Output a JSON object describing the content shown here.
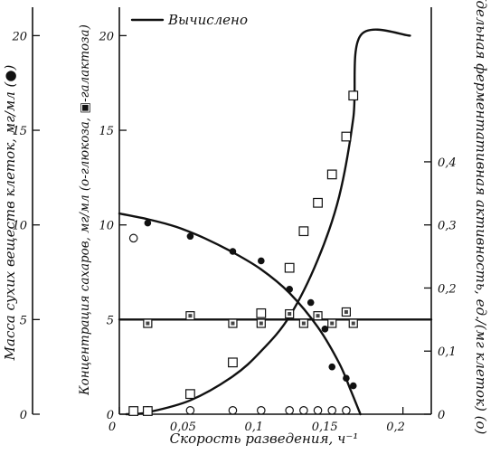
{
  "chart_data": {
    "type": "scatter",
    "legend": {
      "label": "Вычислено",
      "position": "top-left"
    },
    "axes": {
      "x": {
        "label": "Скорость разведения, ч⁻¹",
        "range": [
          0,
          0.22
        ],
        "ticks": [
          {
            "v": 0,
            "t": "0"
          },
          {
            "v": 0.05,
            "t": "0,05"
          },
          {
            "v": 0.1,
            "t": "0,1"
          },
          {
            "v": 0.15,
            "t": "0,15"
          },
          {
            "v": 0.2,
            "t": "0,2"
          }
        ]
      },
      "y_left_outer": {
        "label": "Масса сухих веществ клеток, мг/мл (●)",
        "range": [
          0,
          21.5
        ],
        "ticks": [
          {
            "v": 0,
            "t": "0"
          },
          {
            "v": 5,
            "t": "5"
          },
          {
            "v": 10,
            "t": "10"
          },
          {
            "v": 15,
            "t": "15"
          },
          {
            "v": 20,
            "t": "20"
          }
        ]
      },
      "y_left_inner": {
        "label": "Концентрация сахаров, мг/мл (о-глюкоза, ▣-галактоза)",
        "range": [
          0,
          21.5
        ],
        "ticks": [
          {
            "v": 0,
            "t": "0"
          },
          {
            "v": 5,
            "t": "5"
          },
          {
            "v": 10,
            "t": "10"
          },
          {
            "v": 15,
            "t": "15"
          },
          {
            "v": 20,
            "t": "20"
          }
        ]
      },
      "y_right": {
        "label": "Удельная ферментативная активность, ед./(мг клеток) (о)",
        "range": [
          0,
          0.645
        ],
        "ticks": [
          {
            "v": 0,
            "t": "0"
          },
          {
            "v": 0.1,
            "t": "0,1"
          },
          {
            "v": 0.2,
            "t": "0,2"
          },
          {
            "v": 0.3,
            "t": "0,3"
          },
          {
            "v": 0.4,
            "t": "0,4"
          }
        ]
      }
    },
    "series": [
      {
        "key": "dry_mass",
        "marker": "filled-circle",
        "axis": "left",
        "points": [
          [
            0.02,
            10.1
          ],
          [
            0.05,
            9.4
          ],
          [
            0.08,
            8.6
          ],
          [
            0.1,
            8.1
          ],
          [
            0.12,
            6.6
          ],
          [
            0.135,
            5.9
          ],
          [
            0.145,
            4.5
          ],
          [
            0.15,
            2.5
          ],
          [
            0.16,
            1.9
          ],
          [
            0.165,
            1.5
          ]
        ]
      },
      {
        "key": "glucose",
        "marker": "open-circle",
        "axis": "left",
        "points": [
          [
            0.01,
            9.3
          ],
          [
            0.02,
            0.2
          ],
          [
            0.05,
            0.2
          ],
          [
            0.08,
            0.2
          ],
          [
            0.1,
            0.2
          ],
          [
            0.12,
            0.2
          ],
          [
            0.13,
            0.2
          ],
          [
            0.14,
            0.2
          ],
          [
            0.15,
            0.2
          ],
          [
            0.16,
            0.2
          ]
        ]
      },
      {
        "key": "galactose",
        "marker": "dotted-square",
        "axis": "left",
        "points": [
          [
            0.02,
            4.8
          ],
          [
            0.05,
            5.2
          ],
          [
            0.08,
            4.8
          ],
          [
            0.1,
            4.8
          ],
          [
            0.12,
            5.3
          ],
          [
            0.13,
            4.8
          ],
          [
            0.14,
            5.2
          ],
          [
            0.15,
            4.8
          ],
          [
            0.16,
            5.4
          ],
          [
            0.165,
            4.8
          ]
        ]
      },
      {
        "key": "activity",
        "marker": "open-square",
        "axis": "right",
        "points": [
          [
            0.01,
            0.005
          ],
          [
            0.02,
            0.005
          ],
          [
            0.05,
            0.032
          ],
          [
            0.08,
            0.082
          ],
          [
            0.1,
            0.16
          ],
          [
            0.12,
            0.232
          ],
          [
            0.13,
            0.29
          ],
          [
            0.14,
            0.335
          ],
          [
            0.15,
            0.38
          ],
          [
            0.16,
            0.44
          ],
          [
            0.165,
            0.505
          ]
        ]
      }
    ],
    "curves": [
      {
        "key": "dry_mass_calc",
        "axis": "left",
        "points": [
          [
            0,
            10.6
          ],
          [
            0.02,
            10.3
          ],
          [
            0.04,
            9.9
          ],
          [
            0.06,
            9.3
          ],
          [
            0.08,
            8.55
          ],
          [
            0.1,
            7.65
          ],
          [
            0.12,
            6.4
          ],
          [
            0.14,
            4.6
          ],
          [
            0.155,
            2.7
          ],
          [
            0.163,
            1.3
          ],
          [
            0.17,
            0
          ]
        ]
      },
      {
        "key": "galactose_calc",
        "axis": "left",
        "points": [
          [
            0,
            5.0
          ],
          [
            0.22,
            5.0
          ]
        ]
      },
      {
        "key": "activity_calc",
        "axis": "right",
        "points": [
          [
            0.005,
            0
          ],
          [
            0.02,
            0.003
          ],
          [
            0.05,
            0.022
          ],
          [
            0.08,
            0.06
          ],
          [
            0.1,
            0.1
          ],
          [
            0.12,
            0.155
          ],
          [
            0.14,
            0.245
          ],
          [
            0.155,
            0.345
          ],
          [
            0.165,
            0.47
          ],
          [
            0.17,
            0.6
          ],
          [
            0.205,
            0.6
          ]
        ]
      }
    ]
  }
}
